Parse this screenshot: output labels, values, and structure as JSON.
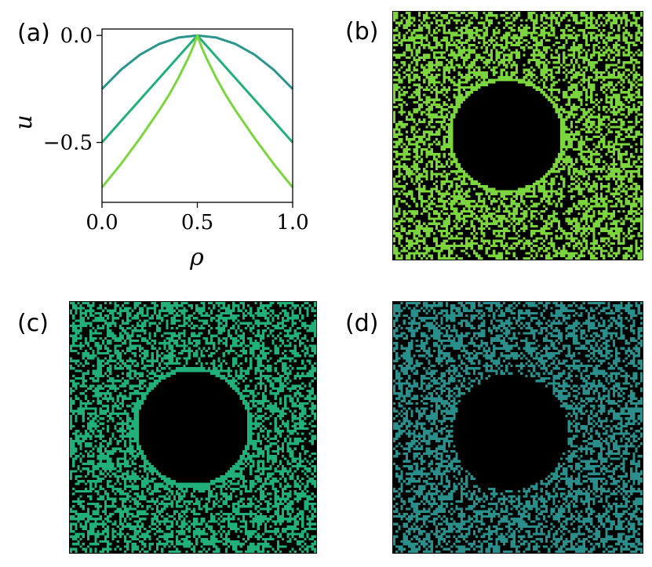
{
  "panels": {
    "a": {
      "label": "(a)"
    },
    "b": {
      "label": "(b)"
    },
    "c": {
      "label": "(c)"
    },
    "d": {
      "label": "(d)"
    }
  },
  "chart_data": [
    {
      "type": "line",
      "panel": "(a)",
      "title": "",
      "xlabel": "ρ",
      "ylabel": "u",
      "xlim": [
        0.0,
        1.0
      ],
      "ylim": [
        -0.78,
        0.03
      ],
      "xticks": [
        0.0,
        0.5,
        1.0
      ],
      "xtick_labels": [
        "0.0",
        "0.5",
        "1.0"
      ],
      "yticks": [
        0.0,
        -0.5
      ],
      "ytick_labels": [
        "0.0",
        "−0.5"
      ],
      "grid": false,
      "series": [
        {
          "color": "#2a968c",
          "x": [
            0,
            0.1,
            0.2,
            0.3,
            0.4,
            0.5,
            0.6,
            0.7,
            0.8,
            0.9,
            1.0
          ],
          "y": [
            -0.25,
            -0.16,
            -0.09,
            -0.04,
            -0.01,
            0.0,
            -0.01,
            -0.04,
            -0.09,
            -0.16,
            -0.25
          ]
        },
        {
          "color": "#22b07a",
          "x": [
            0,
            0.1,
            0.2,
            0.3,
            0.4,
            0.5,
            0.6,
            0.7,
            0.8,
            0.9,
            1.0
          ],
          "y": [
            -0.5,
            -0.4,
            -0.3,
            -0.2,
            -0.1,
            0.0,
            -0.1,
            -0.2,
            -0.3,
            -0.4,
            -0.5
          ]
        },
        {
          "color": "#7ad53e",
          "x": [
            0,
            0.1,
            0.2,
            0.3,
            0.35,
            0.4,
            0.45,
            0.48,
            0.5,
            0.52,
            0.55,
            0.6,
            0.65,
            0.7,
            0.8,
            0.9,
            1.0
          ],
          "y": [
            -0.71,
            -0.6,
            -0.48,
            -0.35,
            -0.28,
            -0.2,
            -0.11,
            -0.05,
            0.0,
            -0.05,
            -0.11,
            -0.2,
            -0.28,
            -0.35,
            -0.48,
            -0.6,
            -0.71
          ]
        }
      ]
    },
    {
      "type": "heatmap",
      "panel": "(b)",
      "description_color": "#7ad53e",
      "grid_cells": 100,
      "fill_fraction": 0.5,
      "hole": {
        "center": [
          0.455,
          0.5
        ],
        "radius": 0.22,
        "rim": true
      }
    },
    {
      "type": "heatmap",
      "panel": "(c)",
      "description_color": "#22b07a",
      "grid_cells": 100,
      "fill_fraction": 0.5,
      "hole": {
        "center": [
          0.5,
          0.5
        ],
        "radius": 0.225,
        "rim": true
      }
    },
    {
      "type": "heatmap",
      "panel": "(d)",
      "description_color": "#2a8f8a",
      "grid_cells": 100,
      "fill_fraction": 0.5,
      "hole": {
        "center": [
          0.47,
          0.52
        ],
        "radius": 0.23,
        "rim": false
      }
    }
  ]
}
